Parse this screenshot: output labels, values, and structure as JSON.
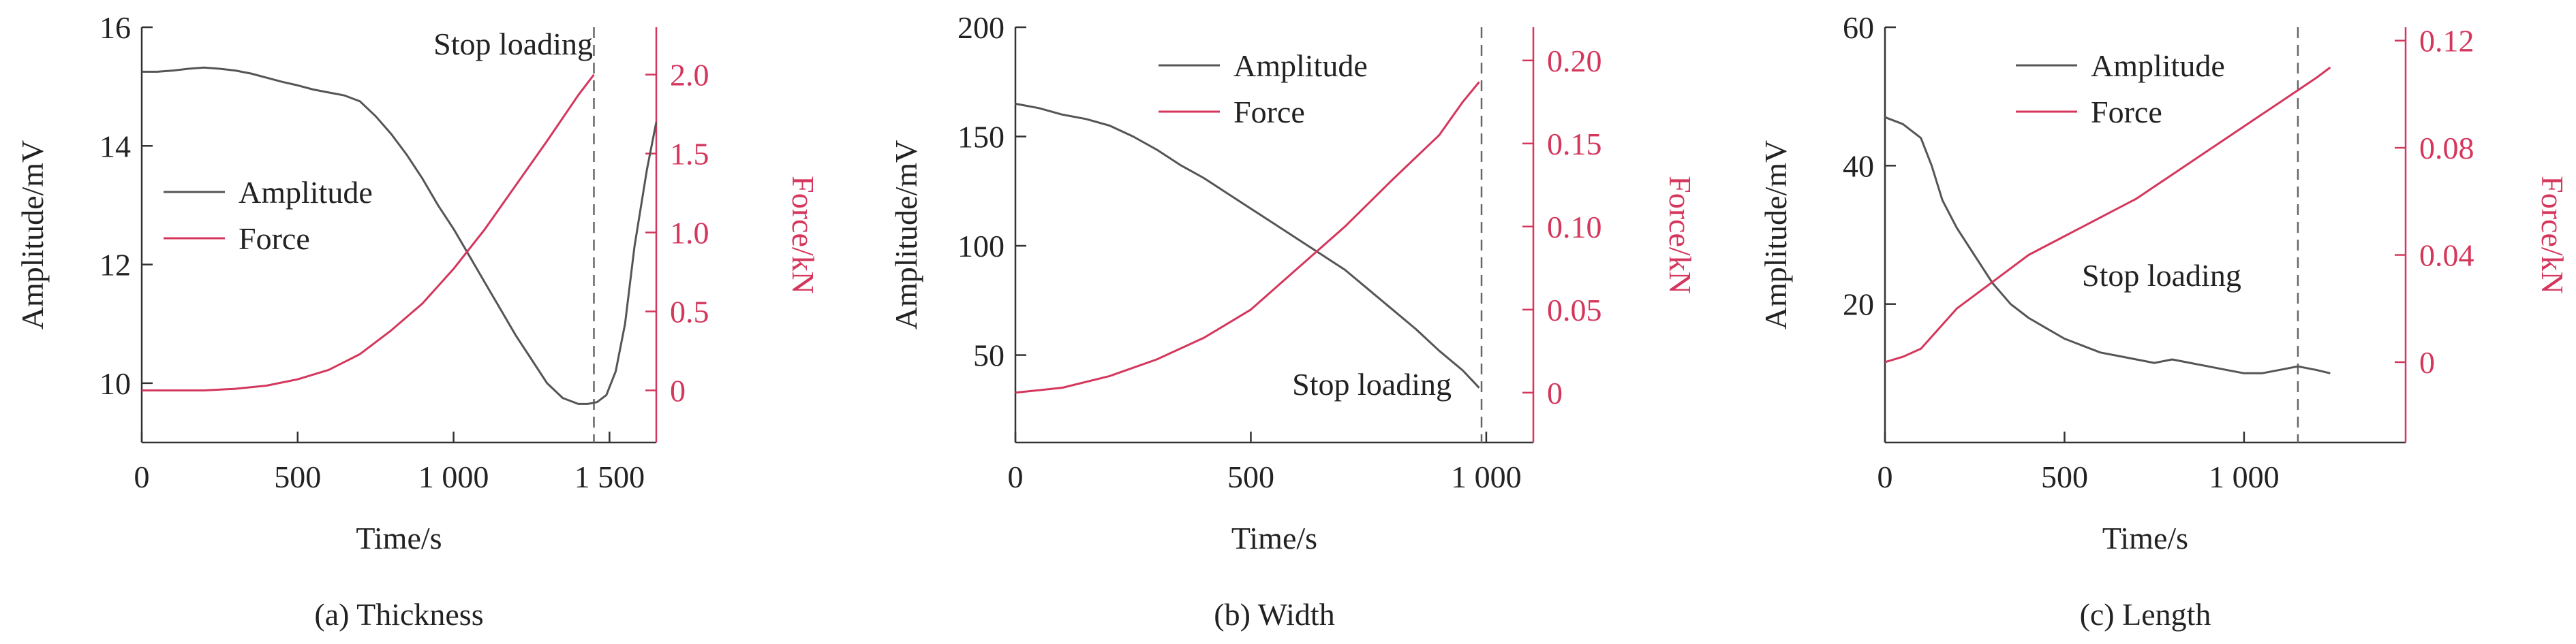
{
  "chart_data": [
    {
      "type": "line",
      "caption": "(a) Thickness",
      "xlabel": "Time/s",
      "ylabel_left": "Amplitude/mV",
      "ylabel_right": "Force/kN",
      "xlim": [
        0,
        1650
      ],
      "ylim_left": [
        9.0,
        16.0
      ],
      "ylim_right": [
        -0.33,
        2.3
      ],
      "x_ticks": [
        0,
        500,
        1000,
        1500
      ],
      "x_tick_labels": [
        "0",
        "500",
        "1 000",
        "1 500"
      ],
      "y_left_ticks": [
        10,
        12,
        14,
        16
      ],
      "y_left_tick_labels": [
        "10",
        "12",
        "14",
        "16"
      ],
      "y_right_ticks": [
        0,
        0.5,
        1.0,
        1.5,
        2.0
      ],
      "y_right_tick_labels": [
        "0",
        "0.5",
        "1.0",
        "1.5",
        "2.0"
      ],
      "stop_loading_time": 1450,
      "annotation": "Stop loading",
      "legend_position": "center-left",
      "series": [
        {
          "name": "Amplitude",
          "axis": "left",
          "color": "#555555",
          "x": [
            0,
            50,
            100,
            150,
            200,
            250,
            300,
            350,
            400,
            450,
            500,
            550,
            600,
            650,
            700,
            750,
            800,
            850,
            900,
            950,
            1000,
            1050,
            1100,
            1150,
            1200,
            1250,
            1300,
            1350,
            1400,
            1430,
            1460,
            1490,
            1520,
            1550,
            1580,
            1620,
            1650
          ],
          "y": [
            15.25,
            15.25,
            15.27,
            15.3,
            15.32,
            15.3,
            15.27,
            15.22,
            15.15,
            15.08,
            15.02,
            14.95,
            14.9,
            14.85,
            14.75,
            14.5,
            14.2,
            13.85,
            13.45,
            13.0,
            12.6,
            12.15,
            11.7,
            11.25,
            10.8,
            10.4,
            10.0,
            9.75,
            9.65,
            9.65,
            9.68,
            9.8,
            10.2,
            11.0,
            12.3,
            13.6,
            14.4
          ]
        },
        {
          "name": "Force",
          "axis": "right",
          "color": "#d4365c",
          "x": [
            0,
            100,
            200,
            300,
            400,
            500,
            600,
            700,
            800,
            900,
            1000,
            1100,
            1200,
            1300,
            1400,
            1450
          ],
          "y": [
            0,
            0,
            0,
            0.01,
            0.03,
            0.07,
            0.13,
            0.23,
            0.38,
            0.55,
            0.77,
            1.02,
            1.3,
            1.58,
            1.87,
            2.0
          ]
        }
      ]
    },
    {
      "type": "line",
      "caption": "(b) Width",
      "xlabel": "Time/s",
      "ylabel_left": "Amplitude/mV",
      "ylabel_right": "Force/kN",
      "xlim": [
        0,
        1100
      ],
      "ylim_left": [
        10,
        200
      ],
      "ylim_right": [
        -0.03,
        0.22
      ],
      "x_ticks": [
        0,
        500,
        1000
      ],
      "x_tick_labels": [
        "0",
        "500",
        "1 000"
      ],
      "y_left_ticks": [
        50,
        100,
        150,
        200
      ],
      "y_left_tick_labels": [
        "50",
        "100",
        "150",
        "200"
      ],
      "y_right_ticks": [
        0,
        0.05,
        0.1,
        0.15,
        0.2
      ],
      "y_right_tick_labels": [
        "0",
        "0.05",
        "0.10",
        "0.15",
        "0.20"
      ],
      "stop_loading_time": 990,
      "annotation": "Stop loading",
      "legend_position": "top-center",
      "series": [
        {
          "name": "Amplitude",
          "axis": "left",
          "color": "#555555",
          "x": [
            0,
            50,
            100,
            150,
            200,
            250,
            300,
            350,
            400,
            450,
            500,
            550,
            600,
            650,
            700,
            750,
            800,
            850,
            900,
            950,
            985
          ],
          "y": [
            165,
            163,
            160,
            158,
            155,
            150,
            144,
            137,
            131,
            124,
            117,
            110,
            103,
            96,
            89,
            80,
            71,
            62,
            52,
            43,
            35
          ]
        },
        {
          "name": "Force",
          "axis": "right",
          "color": "#d4365c",
          "x": [
            0,
            100,
            200,
            300,
            400,
            500,
            600,
            700,
            800,
            900,
            950,
            985
          ],
          "y": [
            0,
            0.003,
            0.01,
            0.02,
            0.033,
            0.05,
            0.075,
            0.1,
            0.128,
            0.155,
            0.175,
            0.187
          ]
        }
      ]
    },
    {
      "type": "line",
      "caption": "(c) Length",
      "xlabel": "Time/s",
      "ylabel_left": "Amplitude/mV",
      "ylabel_right": "Force/kN",
      "xlim": [
        0,
        1450
      ],
      "ylim_left": [
        0,
        60
      ],
      "ylim_right": [
        -0.03,
        0.125
      ],
      "x_ticks": [
        0,
        500,
        1000
      ],
      "x_tick_labels": [
        "0",
        "500",
        "1 000"
      ],
      "y_left_ticks": [
        20,
        40,
        60
      ],
      "y_left_tick_labels": [
        "20",
        "40",
        "60"
      ],
      "y_right_ticks": [
        0,
        0.04,
        0.08,
        0.12
      ],
      "y_right_tick_labels": [
        "0",
        "0.04",
        "0.08",
        "0.12"
      ],
      "stop_loading_time": 1150,
      "annotation": "Stop loading",
      "legend_position": "top-center",
      "series": [
        {
          "name": "Amplitude",
          "axis": "left",
          "color": "#555555",
          "x": [
            0,
            50,
            100,
            130,
            160,
            200,
            250,
            300,
            350,
            400,
            450,
            500,
            550,
            600,
            650,
            700,
            750,
            800,
            850,
            900,
            950,
            1000,
            1050,
            1100,
            1150,
            1200,
            1240
          ],
          "y": [
            47,
            46,
            44,
            40,
            35,
            31,
            27,
            23,
            20,
            18,
            16.5,
            15,
            14,
            13,
            12.5,
            12,
            11.5,
            12,
            11.5,
            11,
            10.5,
            10,
            10,
            10.5,
            11,
            10.5,
            10
          ]
        },
        {
          "name": "Force",
          "axis": "right",
          "color": "#d4365c",
          "x": [
            0,
            50,
            100,
            200,
            300,
            400,
            500,
            600,
            700,
            800,
            900,
            1000,
            1100,
            1200,
            1240
          ],
          "y": [
            0,
            0.002,
            0.005,
            0.02,
            0.03,
            0.04,
            0.047,
            0.054,
            0.061,
            0.07,
            0.079,
            0.088,
            0.097,
            0.106,
            0.11
          ]
        }
      ]
    }
  ]
}
